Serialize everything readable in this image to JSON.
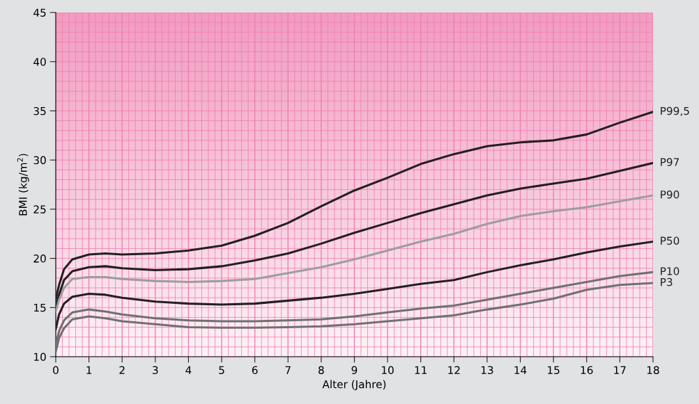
{
  "chart_data": {
    "type": "line",
    "xlabel": "Alter (Jahre)",
    "ylabel": "BMI (kg/m$^{2}$)",
    "x": [
      0,
      0.1,
      0.25,
      0.5,
      1,
      1.5,
      2,
      3,
      4,
      5,
      6,
      7,
      8,
      9,
      10,
      11,
      12,
      13,
      14,
      15,
      16,
      17,
      18
    ],
    "xlim": [
      0,
      18
    ],
    "xticks": [
      0,
      1,
      2,
      3,
      4,
      5,
      6,
      7,
      8,
      9,
      10,
      11,
      12,
      13,
      14,
      15,
      16,
      17,
      18
    ],
    "ylim": [
      10,
      45
    ],
    "yticks": [
      10,
      15,
      20,
      25,
      30,
      35,
      40,
      45
    ],
    "grid": true,
    "legend": false,
    "marker": "none",
    "line_style": "solid",
    "series": [
      {
        "name": "P99,5",
        "color": "#231f20",
        "values": [
          15.8,
          17.3,
          18.9,
          19.9,
          20.4,
          20.5,
          20.4,
          20.5,
          20.8,
          21.3,
          22.3,
          23.6,
          25.3,
          26.9,
          28.2,
          29.6,
          30.6,
          31.4,
          31.8,
          32.0,
          32.6,
          33.8,
          34.9
        ]
      },
      {
        "name": "P97",
        "color": "#231f20",
        "values": [
          15.0,
          16.3,
          17.8,
          18.7,
          19.1,
          19.2,
          19.0,
          18.8,
          18.9,
          19.2,
          19.8,
          20.5,
          21.5,
          22.6,
          23.6,
          24.6,
          25.5,
          26.4,
          27.1,
          27.6,
          28.1,
          28.9,
          29.7
        ]
      },
      {
        "name": "P90",
        "color": "#9d9d9d",
        "values": [
          14.6,
          15.8,
          17.0,
          17.9,
          18.1,
          18.1,
          17.9,
          17.7,
          17.6,
          17.7,
          17.9,
          18.5,
          19.1,
          19.9,
          20.8,
          21.7,
          22.5,
          23.5,
          24.3,
          24.8,
          25.2,
          25.8,
          26.4
        ]
      },
      {
        "name": "P50",
        "color": "#231f20",
        "values": [
          12.8,
          14.3,
          15.4,
          16.1,
          16.4,
          16.3,
          16.0,
          15.6,
          15.4,
          15.3,
          15.4,
          15.7,
          16.0,
          16.4,
          16.9,
          17.4,
          17.8,
          18.6,
          19.3,
          19.9,
          20.6,
          21.2,
          21.7
        ]
      },
      {
        "name": "P10",
        "color": "#707070",
        "values": [
          11.2,
          12.6,
          13.7,
          14.5,
          14.8,
          14.6,
          14.3,
          13.9,
          13.7,
          13.6,
          13.6,
          13.7,
          13.8,
          14.1,
          14.5,
          14.9,
          15.2,
          15.8,
          16.4,
          17.0,
          17.6,
          18.2,
          18.6
        ]
      },
      {
        "name": "P3",
        "color": "#707070",
        "values": [
          10.5,
          11.9,
          12.9,
          13.8,
          14.1,
          13.9,
          13.6,
          13.3,
          13.0,
          12.95,
          12.95,
          13.0,
          13.1,
          13.3,
          13.6,
          13.9,
          14.2,
          14.8,
          15.3,
          15.9,
          16.8,
          17.3,
          17.5
        ]
      }
    ]
  }
}
